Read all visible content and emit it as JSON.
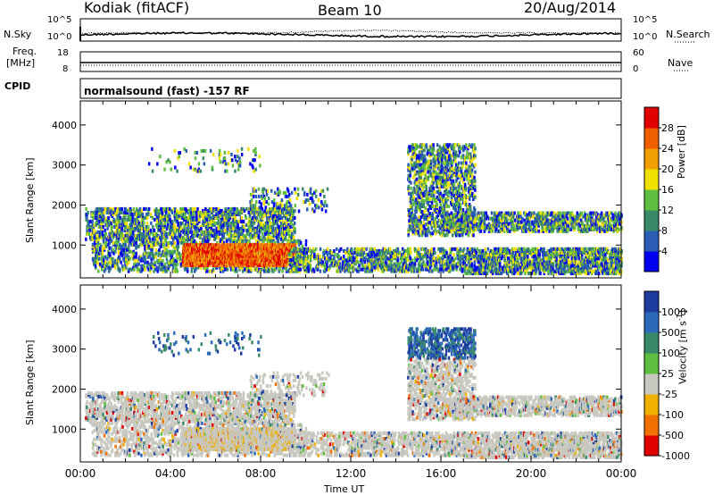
{
  "header": {
    "station": "Kodiak (fitACF)",
    "beam": "Beam 10",
    "date": "20/Aug/2014"
  },
  "side_labels": {
    "nsky": "N.Sky",
    "nsearch": "N.Search",
    "freq": "Freq.",
    "freq_unit": "[MHz]",
    "nave": "Nave",
    "cpid": "CPID"
  },
  "cpid_text": "normalsound (fast) -157 RF",
  "noise_axis": {
    "left_ticks": [
      "10^5",
      "10^0"
    ],
    "right_ticks": [
      "10^5",
      "10^0"
    ]
  },
  "freq_axis": {
    "left_ticks": [
      "18",
      "8"
    ],
    "right_ticks": [
      "60",
      "0"
    ]
  },
  "chart_data": [
    {
      "type": "heatmap",
      "name": "power",
      "ylabel": "Slant Range [km]",
      "ylim": [
        180,
        4600
      ],
      "yticks": [
        1000,
        2000,
        3000,
        4000
      ],
      "xlim": [
        0,
        24
      ],
      "colorbar": {
        "label": "Power [dB]",
        "ticks": [
          "4",
          "8",
          "12",
          "16",
          "20",
          "24",
          "28"
        ],
        "colors": [
          "#0000f0",
          "#2a5cb4",
          "#3a8a6a",
          "#5fbf40",
          "#f0e000",
          "#f0a000",
          "#f06000",
          "#e00000"
        ]
      }
    },
    {
      "type": "heatmap",
      "name": "velocity",
      "ylabel": "Slant Range [km]",
      "ylim": [
        180,
        4600
      ],
      "yticks": [
        1000,
        2000,
        3000,
        4000
      ],
      "xlim": [
        0,
        24
      ],
      "xlabel": "Time UT",
      "xticks": [
        "00:00",
        "04:00",
        "08:00",
        "12:00",
        "16:00",
        "20:00",
        "00:00"
      ],
      "colorbar": {
        "label": "Velocity [m s",
        "label_sup": "-1",
        "label_end": "]",
        "ticks": [
          "1000",
          "500",
          "100",
          "25",
          "-25",
          "-100",
          "-500",
          "-1000"
        ],
        "colors": [
          "#1e3ca0",
          "#2a6ab8",
          "#3a8a6a",
          "#5fbf40",
          "#c8c8c0",
          "#f0b000",
          "#f07000",
          "#e00000"
        ]
      }
    }
  ]
}
